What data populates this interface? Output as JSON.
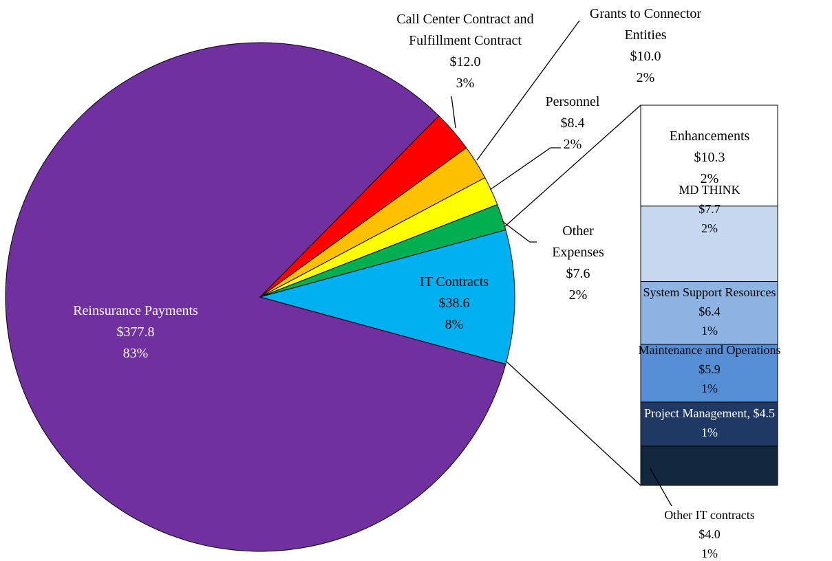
{
  "chart_data": {
    "type": "pie",
    "categories": [
      "Reinsurance Payments",
      "Call Center Contract and Fulfillment Contract",
      "Grants to Connector Entities",
      "Personnel",
      "Other Expenses",
      "IT Contracts"
    ],
    "values": [
      377.8,
      12.0,
      10.0,
      8.4,
      7.6,
      38.6
    ],
    "value_labels": [
      "$377.8",
      "$12.0",
      "$10.0",
      "$8.4",
      "$7.6",
      "$38.6"
    ],
    "percents": [
      83,
      3,
      2,
      2,
      2,
      8
    ],
    "percent_labels": [
      "83%",
      "3%",
      "2%",
      "2%",
      "2%",
      "8%"
    ],
    "colors": [
      "#7030a0",
      "#ff0000",
      "#ffc000",
      "#ffff00",
      "#00b050",
      "#00b0f0"
    ],
    "breakdown": {
      "type": "bar",
      "categories": [
        "Enhancements",
        "MD THINK",
        "System Support Resources",
        "Maintenance and Operations",
        "Project Management,",
        "Other IT contracts"
      ],
      "values": [
        10.3,
        7.7,
        6.4,
        5.9,
        4.5,
        4.0
      ],
      "value_labels": [
        "$10.3",
        "$7.7",
        "$6.4",
        "$5.9",
        "$4.5",
        "$4.0"
      ],
      "percents": [
        2,
        2,
        1,
        1,
        1,
        1
      ],
      "percent_labels": [
        "2%",
        "2%",
        "1%",
        "1%",
        "1%",
        "1%"
      ],
      "colors": [
        "#ffffff",
        "#c6d9f1",
        "#8db4e2",
        "#558ed5",
        "#1f3864",
        "#13273f"
      ]
    }
  }
}
